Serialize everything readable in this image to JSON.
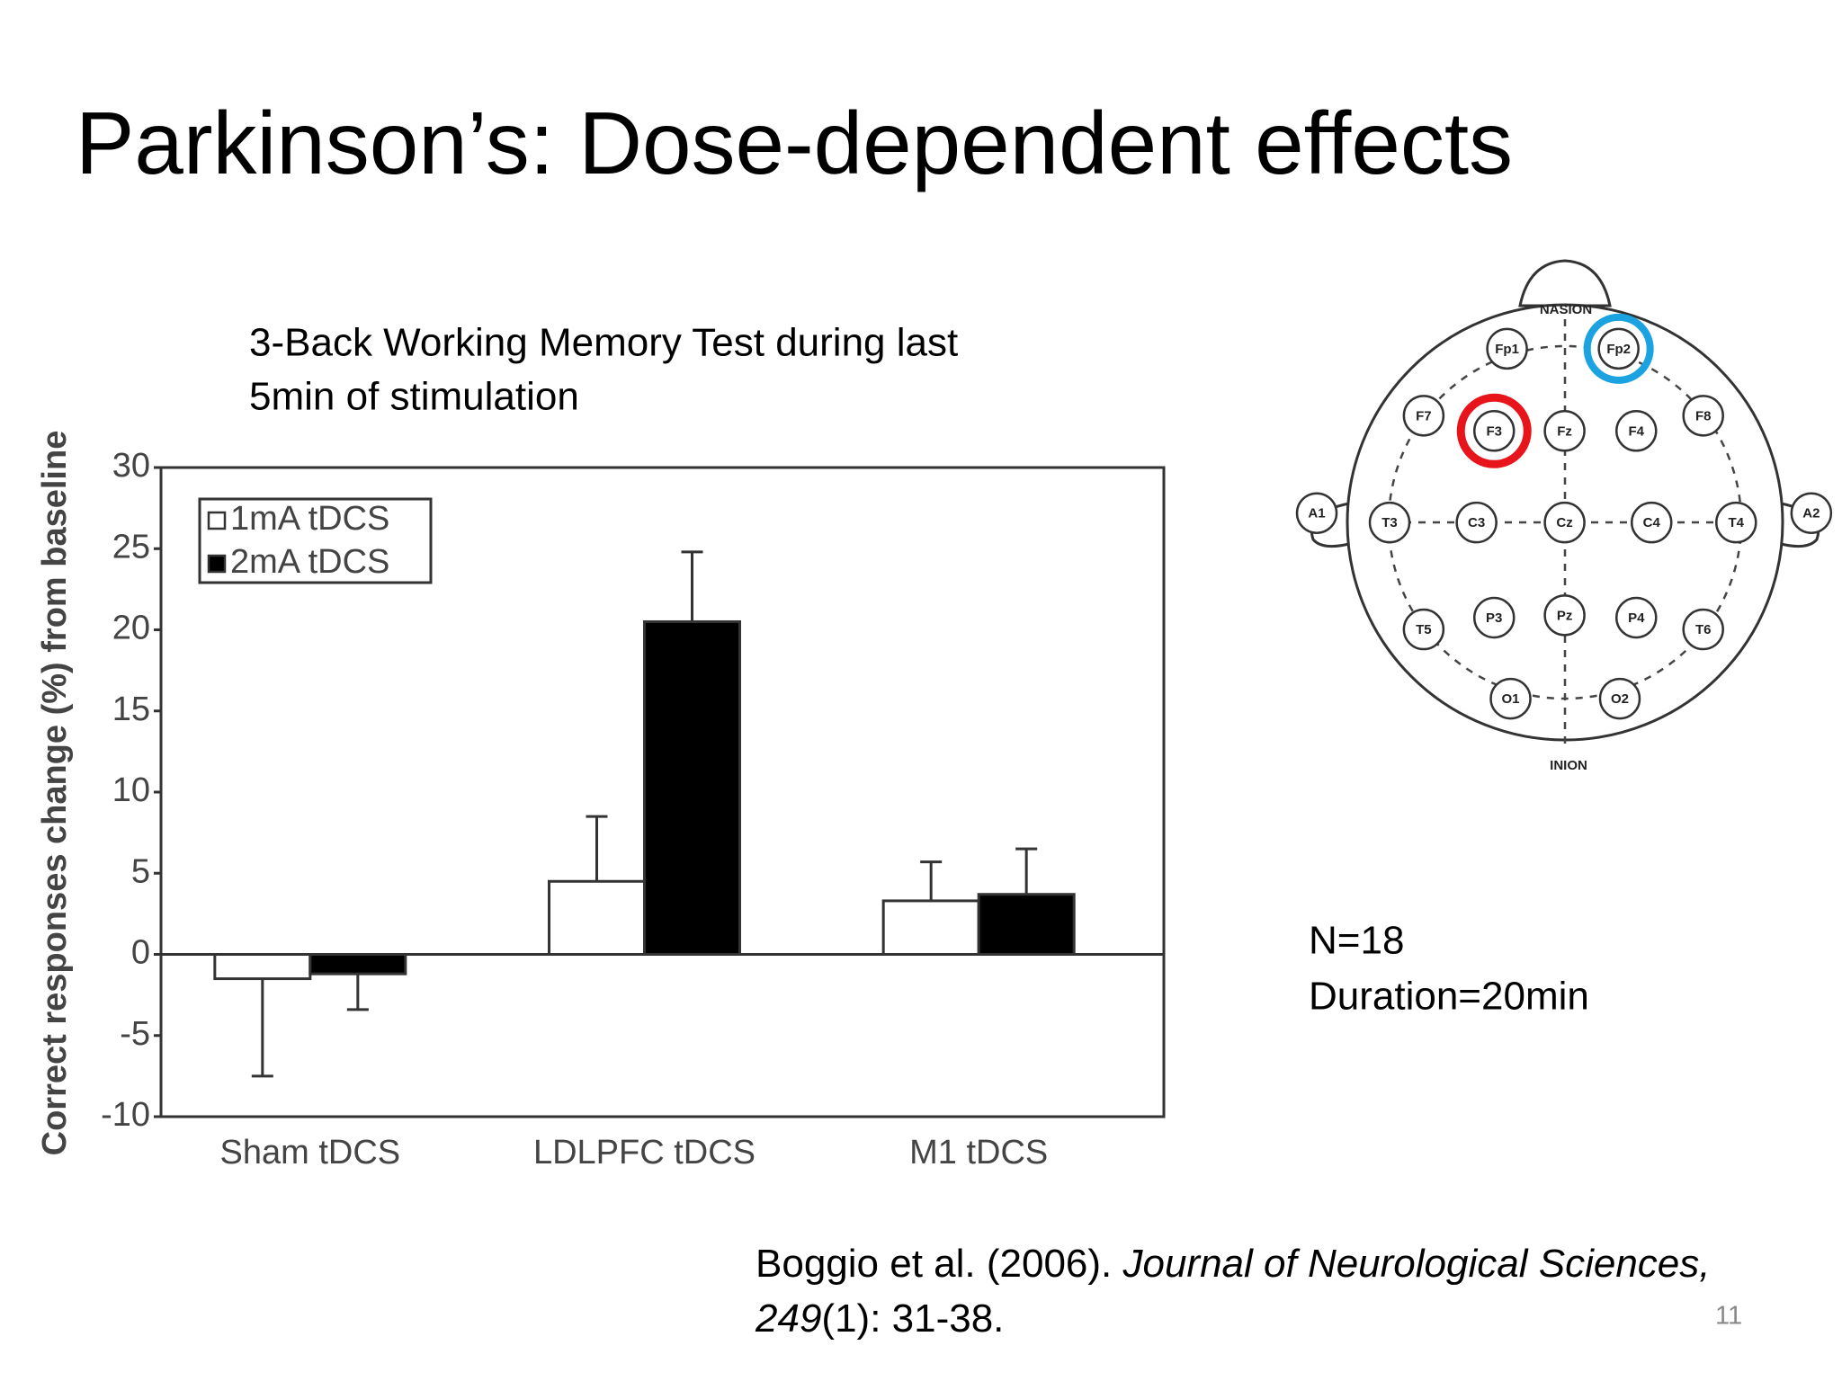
{
  "slide": {
    "title": "Parkinson’s: Dose-dependent effects",
    "caption": [
      "3-Back Working Memory Test during last",
      "5min of stimulation"
    ],
    "notes": [
      "N=18",
      "Duration=20min"
    ],
    "citation": {
      "authors": "Boggio et al. (2006). ",
      "journal": "Journal of Neurological Sciences,",
      "volume": "249",
      "pages": "(1): 31-38."
    },
    "page_number": "11"
  },
  "eeg": {
    "nasion": "NASION",
    "inion": "INION",
    "electrodes": [
      "Fp1",
      "Fp2",
      "F7",
      "F3",
      "Fz",
      "F4",
      "F8",
      "A1",
      "T3",
      "C3",
      "Cz",
      "C4",
      "T4",
      "A2",
      "T5",
      "P3",
      "Pz",
      "P4",
      "T6",
      "O1",
      "O2"
    ]
  },
  "chart_data": {
    "type": "bar",
    "y_label": "Correct responses change (%) from baseline",
    "categories": [
      "Sham tDCS",
      "LDLPFC tDCS",
      "M1 tDCS"
    ],
    "series": [
      {
        "name": "1mA tDCS",
        "color": "#ffffff",
        "values": [
          -1.5,
          4.5,
          3.3
        ],
        "errors": [
          6.0,
          4.0,
          2.4
        ]
      },
      {
        "name": "2mA tDCS",
        "color": "#000000",
        "values": [
          -1.2,
          20.5,
          3.7
        ],
        "errors": [
          2.2,
          4.3,
          2.8
        ]
      }
    ],
    "ylim": [
      -10,
      30
    ],
    "yticks": [
      -10,
      -5,
      0,
      5,
      10,
      15,
      20,
      25,
      30
    ],
    "grid": false,
    "legend": "upper left"
  }
}
